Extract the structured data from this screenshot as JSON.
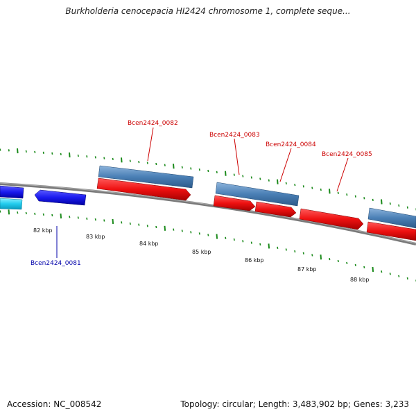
{
  "title": "Burkholderia cenocepacia HI2424 chromosome 1, complete seque...",
  "footer": {
    "accession": "Accession: NC_008542",
    "summary": "Topology: circular; Length: 3,483,902 bp; Genes: 3,233"
  },
  "tick_labels": [
    "82 kbp",
    "83 kbp",
    "84 kbp",
    "85 kbp",
    "86 kbp",
    "87 kbp",
    "88 kbp"
  ],
  "gene_labels": [
    {
      "text": "Bcen2424_0081",
      "strand": "reverse"
    },
    {
      "text": "Bcen2424_0082",
      "strand": "forward"
    },
    {
      "text": "Bcen2424_0083",
      "strand": "forward"
    },
    {
      "text": "Bcen2424_0084",
      "strand": "forward"
    },
    {
      "text": "Bcen2424_0085",
      "strand": "forward"
    }
  ],
  "colors": {
    "backbone": "#808080",
    "forward_cds": "#ee1111",
    "forward_gene": "#4a7fb5",
    "reverse_cds": "#1a1aee",
    "reverse_gene": "#22ccee",
    "forward_label": "#cc0000",
    "reverse_label": "#0000aa",
    "tick": "#1a8a1a"
  }
}
